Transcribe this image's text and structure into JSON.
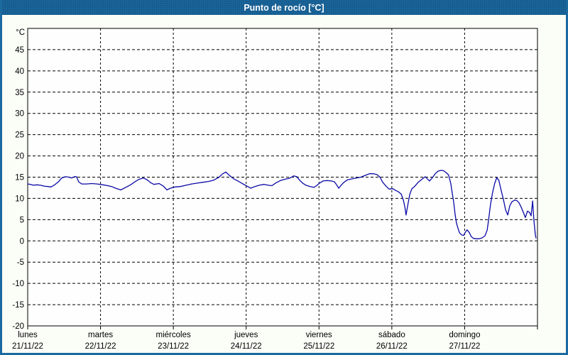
{
  "window": {
    "title": "Punto de rocío [°C]"
  },
  "colors": {
    "titlebar_bg": "#1b6aa0",
    "frame_border": "#1b6aa0",
    "page_background": "#fbfdf7",
    "plot_background": "#fefefe",
    "line": "#0a0aa6",
    "axis": "#000000",
    "grid": "#000000",
    "title_text": "#ffffff"
  },
  "chart_data": {
    "type": "line",
    "title": "Punto de rocío [°C]",
    "unit_label": "°C",
    "ylabel": "°C",
    "ylim": [
      -20,
      50
    ],
    "y_ticks": [
      45,
      40,
      35,
      30,
      25,
      20,
      15,
      10,
      5,
      0,
      -5,
      -10,
      -15,
      -20
    ],
    "grid": "dashed",
    "legend_position": "none",
    "x_total_hours": 168,
    "hours_per_day": 24,
    "x_days": [
      {
        "name": "lunes",
        "date": "21/11/22"
      },
      {
        "name": "martes",
        "date": "22/11/22"
      },
      {
        "name": "miércoles",
        "date": "23/11/22"
      },
      {
        "name": "jueves",
        "date": "24/11/22"
      },
      {
        "name": "viernes",
        "date": "25/11/22"
      },
      {
        "name": "sábado",
        "date": "26/11/22"
      },
      {
        "name": "domingo",
        "date": "27/11/22"
      }
    ],
    "series": [
      {
        "name": "Punto de rocío",
        "points": [
          [
            0,
            13.4
          ],
          [
            0.9,
            13.3
          ],
          [
            1.9,
            13.1
          ],
          [
            3.0,
            13.2
          ],
          [
            4.2,
            13.1
          ],
          [
            5.4,
            12.9
          ],
          [
            6.6,
            12.8
          ],
          [
            7.7,
            12.7
          ],
          [
            8.9,
            13.2
          ],
          [
            10.1,
            13.9
          ],
          [
            11.2,
            14.8
          ],
          [
            12.4,
            15.1
          ],
          [
            13.6,
            15.0
          ],
          [
            14.5,
            14.8
          ],
          [
            15.4,
            15.1
          ],
          [
            16.1,
            15.1
          ],
          [
            16.8,
            13.9
          ],
          [
            17.8,
            13.4
          ],
          [
            19.4,
            13.4
          ],
          [
            21.1,
            13.5
          ],
          [
            22.9,
            13.4
          ],
          [
            24.8,
            13.2
          ],
          [
            26.4,
            13.0
          ],
          [
            27.6,
            12.8
          ],
          [
            29.0,
            12.4
          ],
          [
            30.7,
            12.0
          ],
          [
            32.3,
            12.6
          ],
          [
            33.9,
            13.2
          ],
          [
            35.3,
            13.9
          ],
          [
            36.7,
            14.5
          ],
          [
            38.1,
            14.8
          ],
          [
            39.3,
            14.4
          ],
          [
            40.5,
            13.7
          ],
          [
            41.6,
            13.3
          ],
          [
            43.3,
            13.5
          ],
          [
            44.7,
            12.9
          ],
          [
            45.9,
            12.0
          ],
          [
            47.0,
            12.4
          ],
          [
            48.7,
            12.7
          ],
          [
            50.3,
            12.8
          ],
          [
            52.2,
            13.1
          ],
          [
            54.0,
            13.4
          ],
          [
            55.9,
            13.6
          ],
          [
            57.8,
            13.8
          ],
          [
            59.7,
            14.0
          ],
          [
            61.3,
            14.3
          ],
          [
            62.9,
            14.9
          ],
          [
            64.3,
            15.8
          ],
          [
            65.3,
            16.2
          ],
          [
            66.5,
            15.4
          ],
          [
            67.9,
            14.6
          ],
          [
            69.3,
            14.1
          ],
          [
            70.7,
            13.5
          ],
          [
            72.5,
            12.8
          ],
          [
            73.5,
            12.4
          ],
          [
            74.9,
            12.8
          ],
          [
            76.3,
            13.1
          ],
          [
            77.9,
            13.3
          ],
          [
            79.3,
            13.1
          ],
          [
            80.5,
            13.0
          ],
          [
            81.9,
            13.7
          ],
          [
            83.3,
            14.2
          ],
          [
            84.7,
            14.5
          ],
          [
            86.1,
            14.7
          ],
          [
            87.0,
            15.0
          ],
          [
            87.7,
            15.3
          ],
          [
            88.7,
            15.1
          ],
          [
            89.6,
            14.3
          ],
          [
            90.6,
            13.6
          ],
          [
            91.7,
            13.1
          ],
          [
            93.1,
            12.8
          ],
          [
            94.3,
            12.6
          ],
          [
            95.2,
            13.0
          ],
          [
            96.2,
            13.6
          ],
          [
            97.3,
            14.1
          ],
          [
            98.7,
            14.2
          ],
          [
            100.1,
            14.1
          ],
          [
            101.1,
            13.9
          ],
          [
            101.8,
            13.2
          ],
          [
            102.5,
            12.4
          ],
          [
            103.4,
            13.2
          ],
          [
            104.4,
            13.9
          ],
          [
            105.5,
            14.4
          ],
          [
            106.9,
            14.6
          ],
          [
            108.3,
            14.8
          ],
          [
            109.8,
            15.0
          ],
          [
            111.2,
            15.4
          ],
          [
            112.6,
            15.8
          ],
          [
            114.0,
            15.8
          ],
          [
            115.1,
            15.6
          ],
          [
            116.1,
            15.0
          ],
          [
            117.0,
            13.8
          ],
          [
            118.2,
            12.8
          ],
          [
            119.1,
            12.2
          ],
          [
            120.3,
            12.3
          ],
          [
            121.2,
            11.9
          ],
          [
            122.1,
            11.6
          ],
          [
            123.1,
            11.0
          ],
          [
            123.8,
            9.6
          ],
          [
            124.3,
            8.0
          ],
          [
            124.7,
            6.1
          ],
          [
            125.2,
            8.2
          ],
          [
            125.9,
            10.9
          ],
          [
            126.6,
            12.3
          ],
          [
            127.5,
            12.8
          ],
          [
            128.7,
            13.8
          ],
          [
            129.9,
            14.5
          ],
          [
            131.0,
            15.1
          ],
          [
            131.7,
            14.6
          ],
          [
            132.4,
            14.1
          ],
          [
            133.4,
            14.9
          ],
          [
            134.3,
            15.8
          ],
          [
            135.2,
            16.4
          ],
          [
            136.2,
            16.6
          ],
          [
            137.1,
            16.5
          ],
          [
            138.0,
            16.0
          ],
          [
            138.7,
            15.5
          ],
          [
            139.4,
            13.6
          ],
          [
            139.9,
            11.3
          ],
          [
            140.4,
            9.1
          ],
          [
            140.9,
            6.0
          ],
          [
            141.3,
            4.2
          ],
          [
            141.8,
            3.0
          ],
          [
            142.3,
            1.9
          ],
          [
            143.0,
            1.4
          ],
          [
            143.7,
            1.3
          ],
          [
            144.1,
            1.9
          ],
          [
            144.8,
            2.6
          ],
          [
            145.5,
            2.0
          ],
          [
            146.2,
            1.0
          ],
          [
            146.9,
            0.6
          ],
          [
            147.9,
            0.5
          ],
          [
            148.8,
            0.5
          ],
          [
            149.7,
            0.7
          ],
          [
            150.7,
            1.2
          ],
          [
            151.4,
            2.5
          ],
          [
            151.8,
            4.5
          ],
          [
            152.5,
            8.5
          ],
          [
            153.2,
            11.3
          ],
          [
            153.9,
            13.5
          ],
          [
            154.6,
            14.9
          ],
          [
            155.3,
            14.2
          ],
          [
            156.0,
            12.0
          ],
          [
            156.8,
            9.7
          ],
          [
            157.5,
            7.3
          ],
          [
            158.2,
            6.1
          ],
          [
            158.9,
            8.3
          ],
          [
            159.6,
            9.2
          ],
          [
            160.5,
            9.6
          ],
          [
            161.2,
            9.5
          ],
          [
            161.9,
            9.0
          ],
          [
            162.6,
            8.0
          ],
          [
            163.3,
            6.8
          ],
          [
            164.0,
            5.5
          ],
          [
            164.7,
            7.0
          ],
          [
            165.4,
            6.7
          ],
          [
            165.9,
            5.9
          ],
          [
            166.4,
            9.4
          ],
          [
            166.8,
            5.0
          ],
          [
            167.3,
            1.5
          ],
          [
            167.5,
            0.7
          ]
        ]
      }
    ]
  }
}
